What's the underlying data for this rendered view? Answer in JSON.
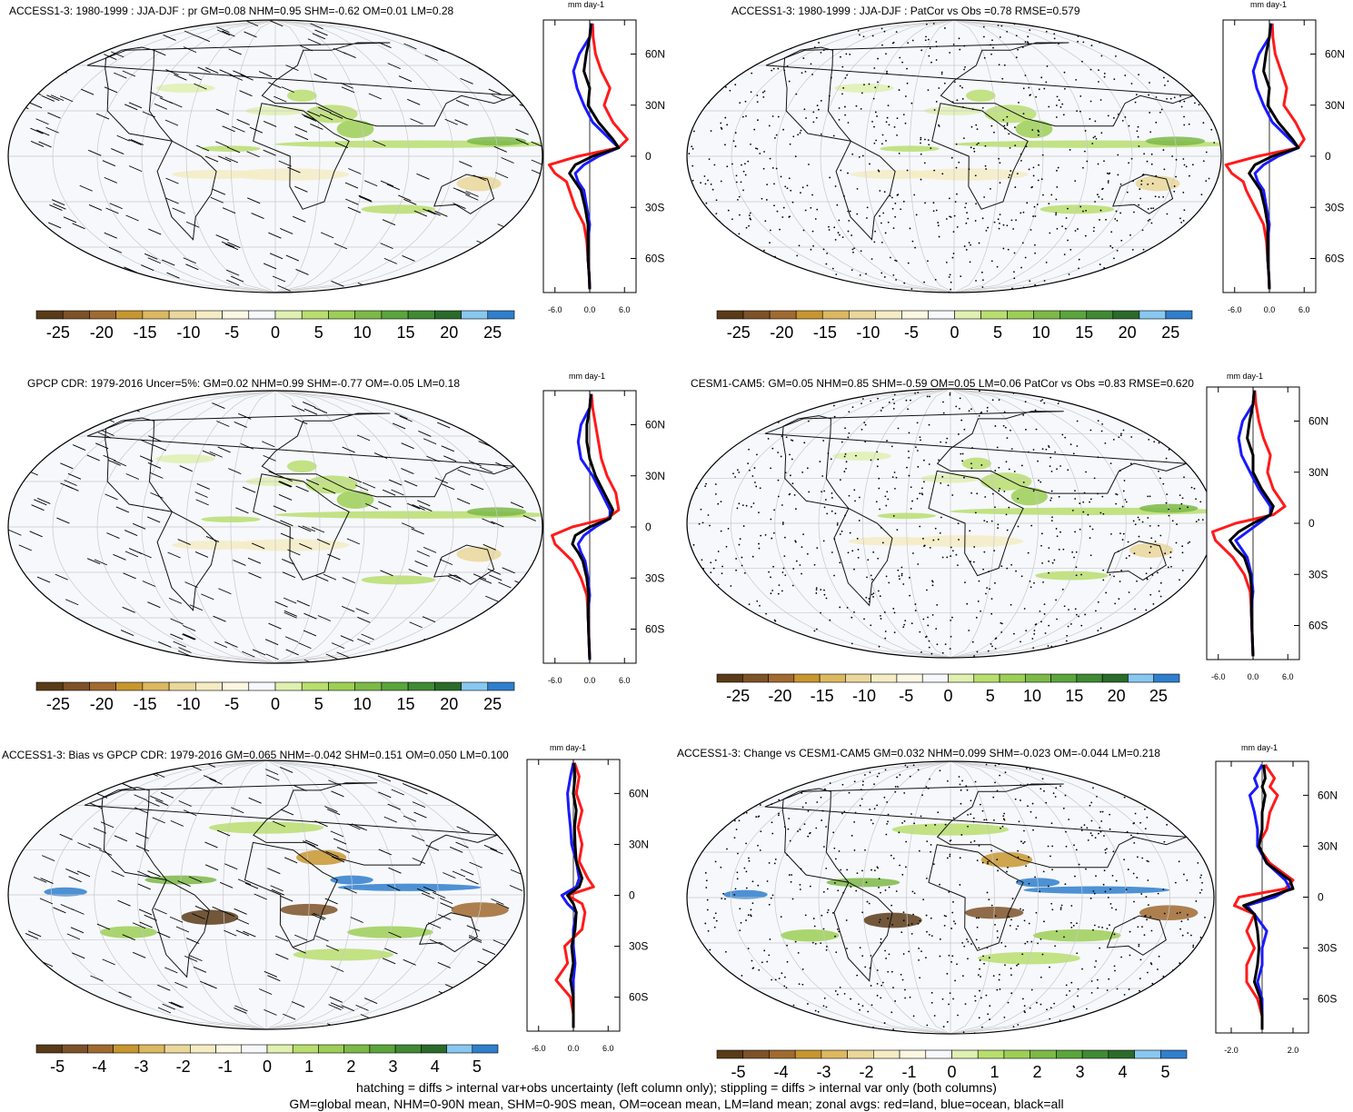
{
  "figure": {
    "footer_lines": [
      "hatching = diffs > internal var+obs uncertainty (left column only); stippling = diffs > internal var only (both columns)",
      "GM=global mean, NHM=0-90N mean, SHM=0-90S mean, OM=ocean mean, LM=land mean; zonal avgs: red=land, blue=ocean, black=all"
    ]
  },
  "colors": {
    "land": "#ff1a1a",
    "ocean": "#1a1aff",
    "all": "#000000",
    "colorbar": [
      "#5a3b17",
      "#7d5228",
      "#a06a30",
      "#c8962f",
      "#dcb860",
      "#ead79a",
      "#f5ecc4",
      "#fbf7e3",
      "#f6f8fc",
      "#dff0b0",
      "#b8de6e",
      "#9ccf55",
      "#7cb947",
      "#5aa53c",
      "#3f8a33",
      "#2a6b2a",
      "#88c8f0",
      "#2f7fcc"
    ]
  },
  "chart_data": [
    {
      "type": "heatmap",
      "title": "ACCESS1-3: 1980-1999 : JJA-DJF : pr GM=0.08 NHM=0.95 SHM=-0.62 OM=0.01 LM=0.28",
      "colorbar_ticks": [
        "-25",
        "-20",
        "-15",
        "-10",
        "-5",
        "0",
        "5",
        "10",
        "15",
        "20",
        "25"
      ],
      "colorbar_range": [
        -27.5,
        27.5
      ],
      "hatching": true,
      "stippling": false,
      "zonal_profile": {
        "units": "mm day-1",
        "xticks": [
          "-6.0",
          "0.0",
          "6.0"
        ],
        "xlim": [
          -8,
          8
        ],
        "yticks": [
          "60N",
          "30N",
          "0",
          "30S",
          "60S"
        ],
        "ylim": [
          -80,
          80
        ],
        "x_ticks_values": [
          -6,
          0,
          6
        ],
        "y_ticks_values": [
          60,
          30,
          0,
          -30,
          -60
        ],
        "lat": [
          78,
          70,
          60,
          50,
          40,
          30,
          20,
          10,
          5,
          0,
          -5,
          -10,
          -15,
          -20,
          -30,
          -40,
          -50,
          -60,
          -70,
          -78
        ],
        "land": [
          0.5,
          0.6,
          1.0,
          2.0,
          3.5,
          2.5,
          4.0,
          6.5,
          5.0,
          -2.0,
          -7.0,
          -6.0,
          -4.0,
          -3.5,
          -2.5,
          -1.0,
          -0.5,
          -0.3,
          -0.1,
          0.0
        ],
        "ocean": [
          0.3,
          0.0,
          -1.8,
          -2.8,
          -2.2,
          -1.0,
          0.5,
          3.5,
          5.0,
          1.5,
          -1.0,
          -2.5,
          -2.0,
          -1.0,
          -0.5,
          0.0,
          -0.3,
          -0.3,
          -0.1,
          0.0
        ],
        "all": [
          0.2,
          0.0,
          -0.6,
          -1.0,
          0.0,
          -0.3,
          1.5,
          4.0,
          5.0,
          0.5,
          -2.5,
          -3.5,
          -2.5,
          -1.5,
          -0.8,
          -0.3,
          -0.3,
          -0.3,
          -0.1,
          0.0
        ]
      }
    },
    {
      "type": "heatmap",
      "title": "ACCESS1-3: 1980-1999 : JJA-DJF : PatCor vs Obs =0.78 RMSE=0.579",
      "colorbar_ticks": [
        "-25",
        "-20",
        "-15",
        "-10",
        "-5",
        "0",
        "5",
        "10",
        "15",
        "20",
        "25"
      ],
      "colorbar_range": [
        -27.5,
        27.5
      ],
      "hatching": false,
      "stippling": true,
      "zonal_profile": {
        "units": "mm day-1",
        "xticks": [
          "-6.0",
          "0.0",
          "6.0"
        ],
        "xlim": [
          -8,
          8
        ],
        "yticks": [
          "60N",
          "30N",
          "0",
          "30S",
          "60S"
        ],
        "ylim": [
          -80,
          80
        ],
        "x_ticks_values": [
          -6,
          0,
          6
        ],
        "y_ticks_values": [
          60,
          30,
          0,
          -30,
          -60
        ],
        "lat": [
          78,
          70,
          60,
          50,
          40,
          30,
          20,
          10,
          5,
          0,
          -5,
          -10,
          -15,
          -20,
          -30,
          -40,
          -50,
          -60,
          -70,
          -78
        ],
        "land": [
          0.5,
          0.6,
          1.0,
          2.0,
          3.0,
          2.5,
          4.5,
          6.0,
          5.0,
          -2.0,
          -7.5,
          -6.5,
          -4.5,
          -4.0,
          -2.5,
          -1.0,
          -0.5,
          -0.3,
          -0.1,
          0.0
        ],
        "ocean": [
          0.3,
          0.0,
          -1.8,
          -2.8,
          -2.2,
          -1.0,
          0.5,
          3.5,
          5.0,
          1.5,
          -1.0,
          -2.5,
          -2.0,
          -1.0,
          -0.5,
          0.0,
          -0.3,
          -0.3,
          -0.1,
          0.0
        ],
        "all": [
          0.2,
          0.0,
          -0.6,
          -1.0,
          0.0,
          -0.3,
          1.5,
          4.0,
          5.0,
          0.5,
          -2.5,
          -3.5,
          -2.5,
          -1.5,
          -0.8,
          -0.3,
          -0.3,
          -0.3,
          -0.1,
          0.0
        ]
      }
    },
    {
      "type": "heatmap",
      "title": "GPCP CDR: 1979-2016 Uncer=5%: GM=0.02 NHM=0.99 SHM=-0.77 OM=-0.05 LM=0.18",
      "colorbar_ticks": [
        "-25",
        "-20",
        "-15",
        "-10",
        "-5",
        "0",
        "5",
        "10",
        "15",
        "20",
        "25"
      ],
      "colorbar_range": [
        -27.5,
        27.5
      ],
      "hatching": true,
      "stippling": false,
      "zonal_profile": {
        "units": "mm day-1",
        "xticks": [
          "-6.0",
          "0.0",
          "6.0"
        ],
        "xlim": [
          -8,
          8
        ],
        "yticks": [
          "60N",
          "30N",
          "0",
          "30S",
          "60S"
        ],
        "ylim": [
          -80,
          80
        ],
        "x_ticks_values": [
          -6,
          0,
          6
        ],
        "y_ticks_values": [
          60,
          30,
          0,
          -30,
          -60
        ],
        "lat": [
          78,
          70,
          60,
          50,
          40,
          30,
          20,
          10,
          5,
          0,
          -5,
          -10,
          -15,
          -20,
          -30,
          -40,
          -50,
          -60,
          -70,
          -78
        ],
        "land": [
          0.3,
          0.5,
          1.0,
          1.5,
          2.0,
          3.0,
          4.5,
          5.0,
          3.0,
          -3.0,
          -6.5,
          -6.0,
          -4.5,
          -3.0,
          -1.5,
          -0.5,
          -0.3,
          -0.2,
          -0.1,
          0.0
        ],
        "ocean": [
          0.2,
          0.0,
          -1.5,
          -2.0,
          -1.5,
          0.5,
          2.0,
          3.5,
          3.5,
          1.0,
          -1.0,
          -2.0,
          -1.5,
          -0.8,
          -0.3,
          0.0,
          -0.3,
          -0.2,
          -0.1,
          0.0
        ],
        "all": [
          0.2,
          0.0,
          -0.5,
          -0.5,
          0.0,
          1.0,
          2.5,
          4.0,
          3.5,
          0.0,
          -2.5,
          -3.0,
          -2.0,
          -1.2,
          -0.5,
          -0.2,
          -0.3,
          -0.2,
          -0.1,
          0.0
        ]
      }
    },
    {
      "type": "heatmap",
      "title": "CESM1-CAM5: GM=0.05 NHM=0.85 SHM=-0.59 OM=0.05 LM=0.06 PatCor vs Obs =0.83 RMSE=0.620",
      "colorbar_ticks": [
        "-25",
        "-20",
        "-15",
        "-10",
        "-5",
        "0",
        "5",
        "10",
        "15",
        "20",
        "25"
      ],
      "colorbar_range": [
        -27.5,
        27.5
      ],
      "hatching": false,
      "stippling": true,
      "zonal_profile": {
        "units": "mm day-1",
        "xticks": [
          "-6.0",
          "0.0",
          "6.0"
        ],
        "xlim": [
          -8,
          8
        ],
        "yticks": [
          "60N",
          "30N",
          "0",
          "30S",
          "60S"
        ],
        "ylim": [
          -80,
          80
        ],
        "x_ticks_values": [
          -6,
          0,
          6
        ],
        "y_ticks_values": [
          60,
          30,
          0,
          -30,
          -60
        ],
        "lat": [
          78,
          70,
          60,
          50,
          40,
          30,
          20,
          10,
          5,
          0,
          -5,
          -10,
          -15,
          -20,
          -30,
          -40,
          -50,
          -60,
          -70,
          -78
        ],
        "land": [
          0.3,
          0.5,
          1.0,
          1.8,
          3.0,
          2.5,
          3.5,
          5.5,
          3.5,
          -3.0,
          -7.0,
          -6.5,
          -5.0,
          -3.5,
          -1.5,
          -0.5,
          -0.3,
          -0.2,
          -0.1,
          0.0
        ],
        "ocean": [
          0.2,
          0.0,
          -1.8,
          -2.5,
          -2.0,
          -0.5,
          1.0,
          3.0,
          3.0,
          1.0,
          -1.0,
          -3.0,
          -2.0,
          -1.0,
          -0.3,
          0.0,
          -0.3,
          -0.2,
          -0.1,
          0.0
        ],
        "all": [
          0.2,
          0.0,
          -0.6,
          -1.0,
          0.0,
          0.0,
          1.5,
          3.5,
          3.0,
          0.0,
          -2.5,
          -4.0,
          -3.0,
          -1.5,
          -0.5,
          -0.2,
          -0.3,
          -0.2,
          -0.1,
          0.0
        ]
      }
    },
    {
      "type": "heatmap",
      "title": "ACCESS1-3: Bias vs GPCP CDR: 1979-2016 GM=0.065 NHM=-0.042 SHM=0.151 OM=0.050 LM=0.100",
      "colorbar_ticks": [
        "-5",
        "-4",
        "-3",
        "-2",
        "-1",
        "0",
        "1",
        "2",
        "3",
        "4",
        "5"
      ],
      "colorbar_range": [
        -5.5,
        5.5
      ],
      "hatching": true,
      "stippling": false,
      "zonal_profile": {
        "units": "mm day-1",
        "xticks": [
          "-6.0",
          "0.0",
          "6.0"
        ],
        "xlim": [
          -8,
          8
        ],
        "yticks": [
          "60N",
          "30N",
          "0",
          "30S",
          "60S"
        ],
        "ylim": [
          -80,
          80
        ],
        "x_ticks_values": [
          -6,
          0,
          6
        ],
        "y_ticks_values": [
          60,
          30,
          0,
          -30,
          -60
        ],
        "lat": [
          78,
          70,
          60,
          50,
          40,
          30,
          20,
          10,
          5,
          0,
          -5,
          -10,
          -20,
          -30,
          -40,
          -50,
          -60,
          -70,
          -78
        ],
        "land": [
          0.2,
          1.0,
          0.5,
          1.5,
          0.8,
          1.5,
          1.0,
          2.5,
          3.5,
          -1.0,
          1.5,
          2.0,
          1.5,
          -1.5,
          -1.0,
          -3.0,
          -0.5,
          0.0,
          0.0
        ],
        "ocean": [
          0.0,
          -0.5,
          -1.0,
          -0.8,
          -0.5,
          -0.3,
          0.5,
          1.0,
          0.5,
          -2.0,
          -1.0,
          0.5,
          0.0,
          0.0,
          0.3,
          0.0,
          0.0,
          0.0,
          0.0
        ],
        "all": [
          0.1,
          0.3,
          0.0,
          0.5,
          0.2,
          0.3,
          0.5,
          1.5,
          1.0,
          -1.0,
          0.0,
          0.5,
          0.3,
          -0.3,
          0.0,
          -0.5,
          0.0,
          0.0,
          0.0
        ]
      }
    },
    {
      "type": "heatmap",
      "title": "ACCESS1-3: Change vs CESM1-CAM5 GM=0.032 NHM=0.099 SHM=-0.023 OM=-0.044 LM=0.218",
      "colorbar_ticks": [
        "-5",
        "-4",
        "-3",
        "-2",
        "-1",
        "0",
        "1",
        "2",
        "3",
        "4",
        "5"
      ],
      "colorbar_range": [
        -5.5,
        5.5
      ],
      "hatching": false,
      "stippling": true,
      "zonal_profile": {
        "units": "mm day-1",
        "xticks": [
          "-2.0",
          "2.0"
        ],
        "xlim": [
          -3,
          3
        ],
        "yticks": [
          "60N",
          "30N",
          "0",
          "30S",
          "60S"
        ],
        "ylim": [
          -80,
          80
        ],
        "x_ticks_values": [
          -2,
          2
        ],
        "y_ticks_values": [
          60,
          30,
          0,
          -30,
          -60
        ],
        "lat": [
          78,
          70,
          65,
          60,
          50,
          40,
          30,
          20,
          10,
          5,
          0,
          -5,
          -10,
          -20,
          -30,
          -40,
          -50,
          -60,
          -70,
          -78
        ],
        "land": [
          0.2,
          0.8,
          0.5,
          1.0,
          0.5,
          0.3,
          -0.3,
          0.5,
          2.0,
          1.5,
          -1.5,
          -1.8,
          -0.5,
          -1.0,
          -0.5,
          -1.0,
          -1.0,
          -0.3,
          0.0,
          0.0
        ],
        "ocean": [
          0.0,
          -0.5,
          -0.3,
          -0.8,
          -0.5,
          -0.3,
          -0.3,
          0.3,
          1.5,
          1.8,
          0.8,
          -1.0,
          -0.5,
          0.3,
          0.0,
          0.0,
          -0.3,
          0.0,
          0.0,
          0.0
        ],
        "all": [
          0.1,
          0.2,
          0.0,
          0.2,
          0.0,
          0.0,
          -0.2,
          0.3,
          1.8,
          2.0,
          0.3,
          -1.2,
          -0.5,
          -0.3,
          -0.2,
          -0.3,
          -0.5,
          -0.1,
          0.0,
          0.0
        ]
      }
    }
  ]
}
